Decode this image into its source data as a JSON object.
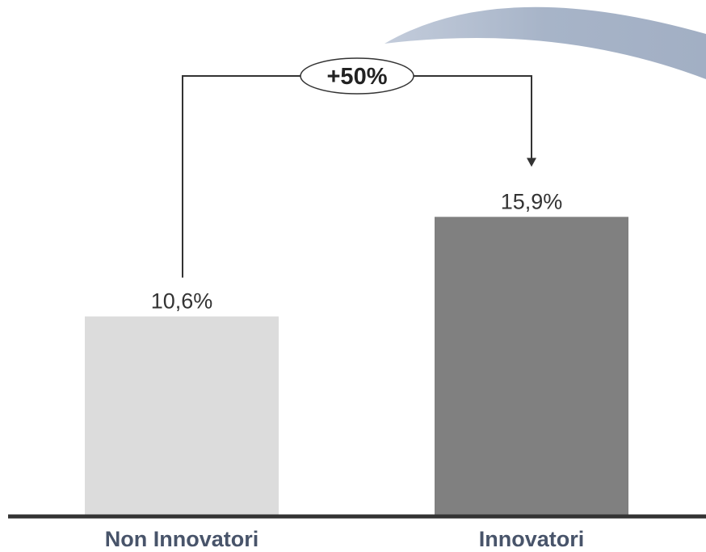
{
  "chart_data": {
    "type": "bar",
    "categories": [
      "Non Innovatori",
      "Innovatori"
    ],
    "values": [
      10.6,
      15.9
    ],
    "value_labels": [
      "10,6%",
      "15,9%"
    ],
    "bar_colors": [
      "#dcdcdc",
      "#808080"
    ],
    "ylim": [
      0,
      20
    ],
    "grid": false,
    "annotation": {
      "text": "+50%",
      "from_category": "Non Innovatori",
      "to_category": "Innovatori"
    },
    "colors": {
      "axis": "#333333",
      "category_label": "#48546a",
      "swoosh": "#a7b4c8",
      "connector": "#333333"
    }
  }
}
